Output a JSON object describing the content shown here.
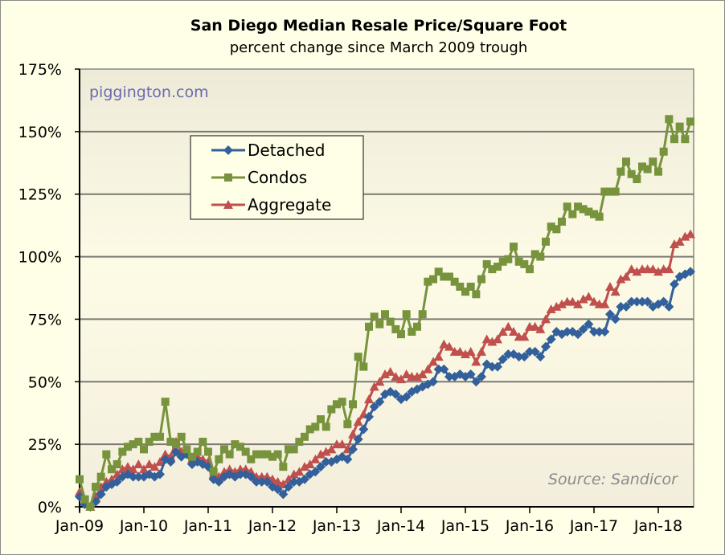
{
  "chart_data": {
    "type": "line",
    "title": "San Diego Median Resale Price/Square Foot",
    "subtitle": "percent change since March 2009 trough",
    "watermark": "piggington.com",
    "source": "Source: Sandicor",
    "xlabel": "",
    "ylabel": "",
    "ylim": [
      0,
      175
    ],
    "yticks": [
      "0%",
      "25%",
      "50%",
      "75%",
      "100%",
      "125%",
      "150%",
      "175%"
    ],
    "xticks": [
      "Jan-09",
      "Jan-10",
      "Jan-11",
      "Jan-12",
      "Jan-13",
      "Jan-14",
      "Jan-15",
      "Jan-16",
      "Jan-17",
      "Jan-18"
    ],
    "x_start": "Jan-09",
    "x_frequency": "monthly",
    "grid": true,
    "legend_position": "upper-left-inside",
    "series": [
      {
        "name": "Detached",
        "color": "#33609A",
        "marker": "diamond",
        "values": [
          4,
          1,
          0,
          2,
          5,
          8,
          9,
          10,
          12,
          13,
          12,
          12,
          12,
          13,
          12,
          13,
          19,
          18,
          22,
          20,
          21,
          17,
          18,
          17,
          16,
          11,
          10,
          12,
          13,
          12,
          13,
          13,
          12,
          10,
          10,
          10,
          8,
          7,
          5,
          8,
          10,
          10,
          11,
          13,
          14,
          16,
          18,
          18,
          19,
          20,
          19,
          23,
          27,
          31,
          36,
          40,
          42,
          45,
          46,
          45,
          43,
          44,
          46,
          47,
          48,
          49,
          50,
          55,
          55,
          52,
          52,
          53,
          52,
          53,
          50,
          52,
          57,
          56,
          56,
          59,
          61,
          61,
          60,
          60,
          62,
          62,
          60,
          64,
          67,
          70,
          69,
          70,
          70,
          69,
          71,
          73,
          70,
          70,
          70,
          77,
          75,
          80,
          80,
          82,
          82,
          82,
          82,
          80,
          81,
          82,
          80,
          89,
          92,
          93,
          94
        ]
      },
      {
        "name": "Condos",
        "color": "#77933C",
        "marker": "square",
        "values": [
          11,
          3,
          0,
          8,
          12,
          21,
          15,
          17,
          22,
          24,
          25,
          26,
          23,
          26,
          28,
          28,
          42,
          26,
          25,
          28,
          23,
          20,
          22,
          26,
          22,
          14,
          19,
          23,
          21,
          25,
          24,
          22,
          19,
          21,
          21,
          21,
          20,
          21,
          16,
          23,
          23,
          26,
          28,
          31,
          32,
          35,
          32,
          39,
          41,
          42,
          33,
          41,
          60,
          56,
          72,
          76,
          73,
          77,
          74,
          71,
          69,
          77,
          70,
          72,
          77,
          90,
          91,
          94,
          92,
          92,
          90,
          88,
          86,
          88,
          85,
          91,
          97,
          95,
          96,
          98,
          99,
          104,
          98,
          97,
          95,
          101,
          100,
          106,
          112,
          111,
          114,
          120,
          117,
          120,
          119,
          118,
          117,
          116,
          126,
          126,
          126,
          134,
          138,
          133,
          131,
          136,
          135,
          138,
          134,
          142,
          155,
          147,
          152,
          147,
          154
        ]
      },
      {
        "name": "Aggregate",
        "color": "#C0504D",
        "marker": "triangle",
        "values": [
          6,
          2,
          0,
          4,
          8,
          10,
          11,
          13,
          15,
          16,
          15,
          17,
          15,
          17,
          16,
          18,
          21,
          20,
          26,
          22,
          22,
          19,
          20,
          19,
          18,
          13,
          12,
          14,
          15,
          14,
          15,
          15,
          14,
          12,
          12,
          12,
          11,
          10,
          9,
          11,
          13,
          14,
          16,
          17,
          19,
          21,
          22,
          23,
          25,
          25,
          23,
          29,
          34,
          37,
          43,
          48,
          50,
          53,
          54,
          52,
          51,
          53,
          52,
          52,
          53,
          55,
          58,
          60,
          65,
          64,
          62,
          62,
          61,
          62,
          58,
          62,
          67,
          66,
          67,
          70,
          72,
          70,
          68,
          68,
          72,
          72,
          71,
          75,
          79,
          80,
          81,
          82,
          82,
          81,
          83,
          84,
          82,
          81,
          81,
          88,
          86,
          91,
          92,
          95,
          94,
          95,
          95,
          95,
          94,
          95,
          95,
          105,
          106,
          108,
          109
        ]
      }
    ]
  }
}
